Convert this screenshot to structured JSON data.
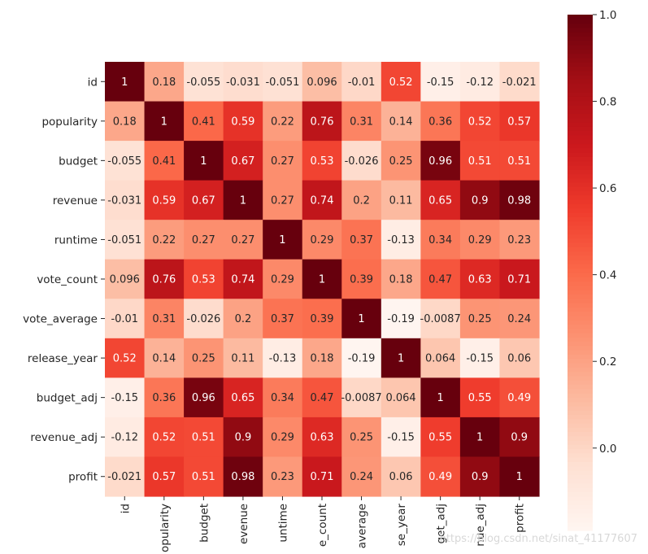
{
  "chart_data": {
    "type": "heatmap",
    "colormap": "Reds",
    "annotated": true,
    "square": true,
    "variables": [
      "id",
      "popularity",
      "budget",
      "revenue",
      "runtime",
      "vote_count",
      "vote_average",
      "release_year",
      "budget_adj",
      "revenue_adj",
      "profit"
    ],
    "x_tick_labels_visible": [
      "id",
      "opularity",
      "budget",
      "evenue",
      "untime",
      "e_count",
      "average",
      "se_year",
      "get_adj",
      "nue_adj",
      "profit"
    ],
    "matrix": [
      [
        1,
        0.18,
        -0.055,
        -0.031,
        -0.051,
        0.096,
        -0.01,
        0.52,
        -0.15,
        -0.12,
        -0.021
      ],
      [
        0.18,
        1,
        0.41,
        0.59,
        0.22,
        0.76,
        0.31,
        0.14,
        0.36,
        0.52,
        0.57
      ],
      [
        -0.055,
        0.41,
        1,
        0.67,
        0.27,
        0.53,
        -0.026,
        0.25,
        0.96,
        0.51,
        0.51
      ],
      [
        -0.031,
        0.59,
        0.67,
        1,
        0.27,
        0.74,
        0.2,
        0.11,
        0.65,
        0.9,
        0.98
      ],
      [
        -0.051,
        0.22,
        0.27,
        0.27,
        1,
        0.29,
        0.37,
        -0.13,
        0.34,
        0.29,
        0.23
      ],
      [
        0.096,
        0.76,
        0.53,
        0.74,
        0.29,
        1,
        0.39,
        0.18,
        0.47,
        0.63,
        0.71
      ],
      [
        -0.01,
        0.31,
        -0.026,
        0.2,
        0.37,
        0.39,
        1,
        -0.19,
        -0.0087,
        0.25,
        0.24
      ],
      [
        0.52,
        0.14,
        0.25,
        0.11,
        -0.13,
        0.18,
        -0.19,
        1,
        0.064,
        -0.15,
        0.06
      ],
      [
        -0.15,
        0.36,
        0.96,
        0.65,
        0.34,
        0.47,
        -0.0087,
        0.064,
        1,
        0.55,
        0.49
      ],
      [
        -0.12,
        0.52,
        0.51,
        0.9,
        0.29,
        0.63,
        0.25,
        -0.15,
        0.55,
        1,
        0.9
      ],
      [
        -0.021,
        0.57,
        0.51,
        0.98,
        0.23,
        0.71,
        0.24,
        0.06,
        0.49,
        0.9,
        1
      ]
    ],
    "vmin": -0.19,
    "vmax": 1.0,
    "colorbar_ticks": [
      0.0,
      0.2,
      0.4,
      0.6,
      0.8,
      1.0
    ],
    "colorbar_tick_labels": [
      "0.0",
      "0.2",
      "0.4",
      "0.6",
      "0.8",
      "1.0"
    ],
    "title": "",
    "xlabel": "",
    "ylabel": ""
  },
  "watermark": "https://blog.csdn.net/sinat_41177607"
}
